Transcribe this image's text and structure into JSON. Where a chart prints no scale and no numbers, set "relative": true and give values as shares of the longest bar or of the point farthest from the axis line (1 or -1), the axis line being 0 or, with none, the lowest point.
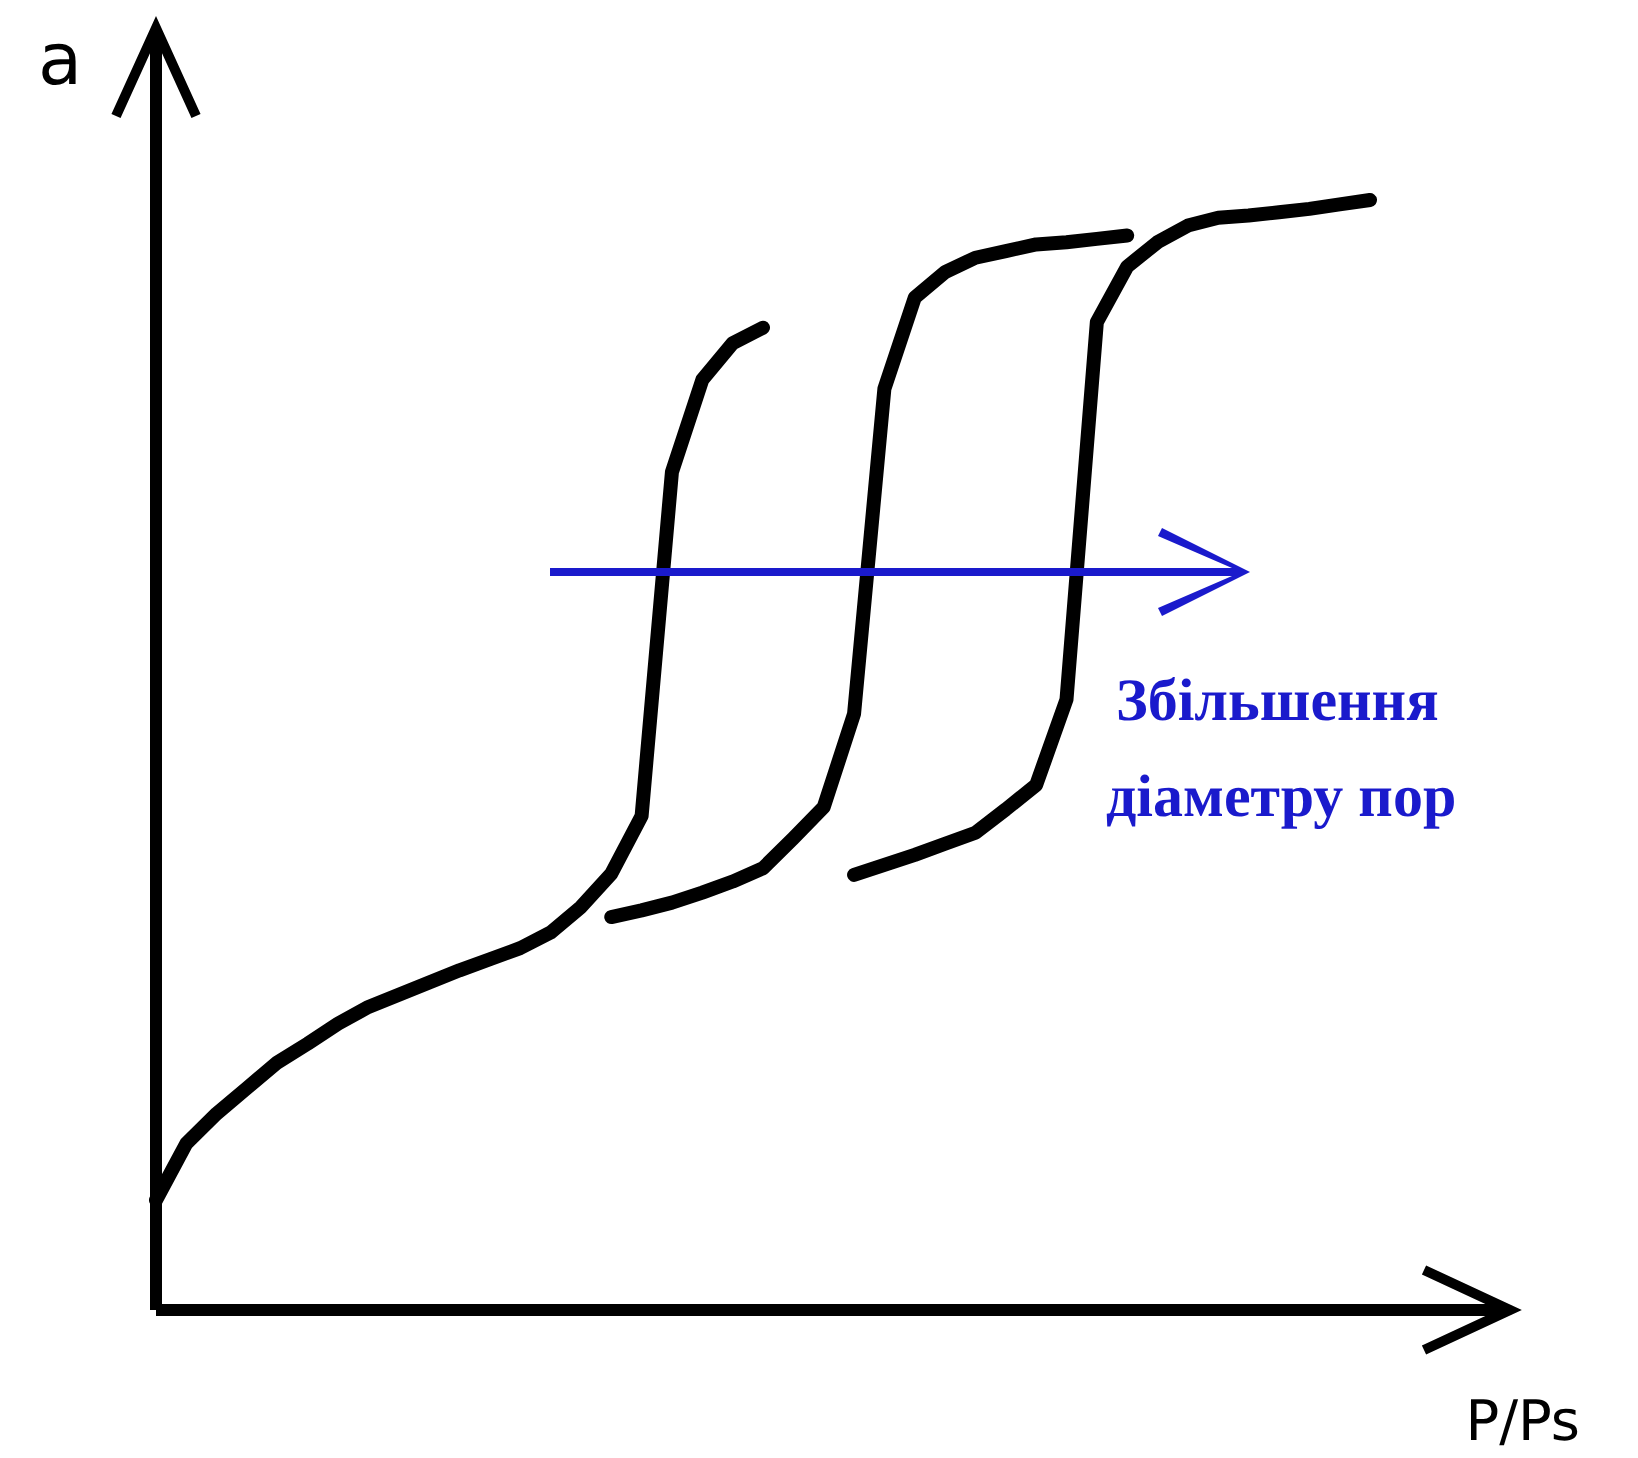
{
  "chart_data": {
    "type": "line",
    "relative": true,
    "xlabel": "P/Ps",
    "ylabel": "a",
    "marker": "none",
    "line_style": "solid",
    "annotations": [
      "Збільшення діаметру пор"
    ],
    "categories": [
      null,
      null,
      null,
      null,
      null,
      null,
      null,
      null,
      null,
      null,
      null,
      null,
      null,
      null,
      null,
      null,
      null,
      null,
      null,
      null,
      null,
      null,
      null,
      null,
      null,
      null,
      null,
      null,
      null,
      null,
      null,
      null,
      null,
      null,
      null,
      null,
      null,
      null,
      null,
      null,
      null
    ],
    "series": [
      {
        "color": "#000000",
        "values": [
          0.099,
          0.15,
          0.177,
          0.2,
          0.223,
          0.24,
          0.258,
          0.273,
          0.284,
          0.295,
          0.306,
          0.316,
          0.326,
          0.34,
          0.363,
          0.393,
          0.445,
          0.755,
          0.838,
          0.871,
          0.885,
          null,
          null,
          null,
          null,
          null,
          null,
          null,
          null,
          null,
          null,
          null,
          null,
          null,
          null,
          null,
          null,
          null,
          null,
          null,
          null
        ]
      },
      {
        "color": "#000000",
        "values": [
          null,
          null,
          null,
          null,
          null,
          null,
          null,
          null,
          null,
          null,
          null,
          null,
          null,
          null,
          null,
          0.354,
          0.36,
          0.367,
          0.376,
          0.386,
          0.398,
          0.425,
          0.453,
          0.537,
          0.83,
          0.912,
          0.935,
          0.948,
          0.954,
          0.96,
          0.962,
          0.965,
          0.968,
          null,
          null,
          null,
          null,
          null,
          null,
          null,
          null
        ]
      },
      {
        "color": "#000000",
        "values": [
          null,
          null,
          null,
          null,
          null,
          null,
          null,
          null,
          null,
          null,
          null,
          null,
          null,
          null,
          null,
          null,
          null,
          null,
          null,
          null,
          null,
          null,
          null,
          0.392,
          0.401,
          0.41,
          0.42,
          0.43,
          0.451,
          0.473,
          0.55,
          0.89,
          0.94,
          0.962,
          0.977,
          0.984,
          0.986,
          0.989,
          0.992,
          0.996,
          1
        ]
      }
    ]
  }
}
